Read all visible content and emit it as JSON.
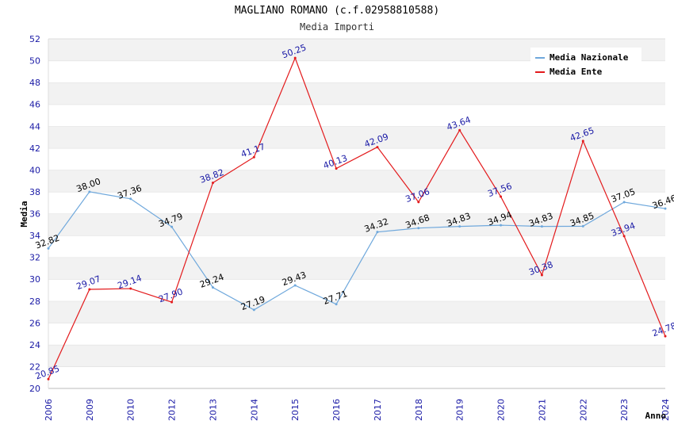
{
  "chart_data": {
    "type": "line",
    "title": "MAGLIANO ROMANO (c.f.02958810588)",
    "subtitle": "Media Importi",
    "xlabel": "Anno",
    "ylabel": "Media",
    "ylim": [
      20,
      52
    ],
    "ytick_step": 2,
    "categories": [
      "2006",
      "2009",
      "2010",
      "2012",
      "2013",
      "2014",
      "2015",
      "2016",
      "2017",
      "2018",
      "2019",
      "2020",
      "2021",
      "2022",
      "2023",
      "2024"
    ],
    "legend_position": "top-right",
    "grid": true,
    "series": [
      {
        "name": "Media Nazionale",
        "color": "#6fa8dc",
        "values": [
          32.82,
          38.0,
          37.36,
          34.79,
          29.24,
          27.19,
          29.43,
          27.71,
          34.32,
          34.68,
          34.83,
          34.94,
          34.83,
          34.85,
          37.05,
          36.46
        ],
        "labels": [
          "32.82",
          "38.00",
          "37.36",
          "34.79",
          "29.24",
          "27.19",
          "29.43",
          "27.71",
          "34.32",
          "34.68",
          "34.83",
          "34.94",
          "34.83",
          "34.85",
          "37.05",
          "36.46"
        ]
      },
      {
        "name": "Media Ente",
        "color": "#e31a1c",
        "values": [
          20.85,
          29.07,
          29.14,
          27.9,
          38.82,
          41.17,
          50.25,
          40.13,
          42.09,
          37.06,
          43.64,
          37.56,
          30.38,
          42.65,
          33.94,
          24.78
        ],
        "labels": [
          "20.85",
          "29.07",
          "29.14",
          "27.90",
          "38.82",
          "41.17",
          "50.25",
          "40.13",
          "42.09",
          "37.06",
          "43.64",
          "37.56",
          "30.38",
          "42.65",
          "33.94",
          "24.78"
        ]
      }
    ]
  }
}
